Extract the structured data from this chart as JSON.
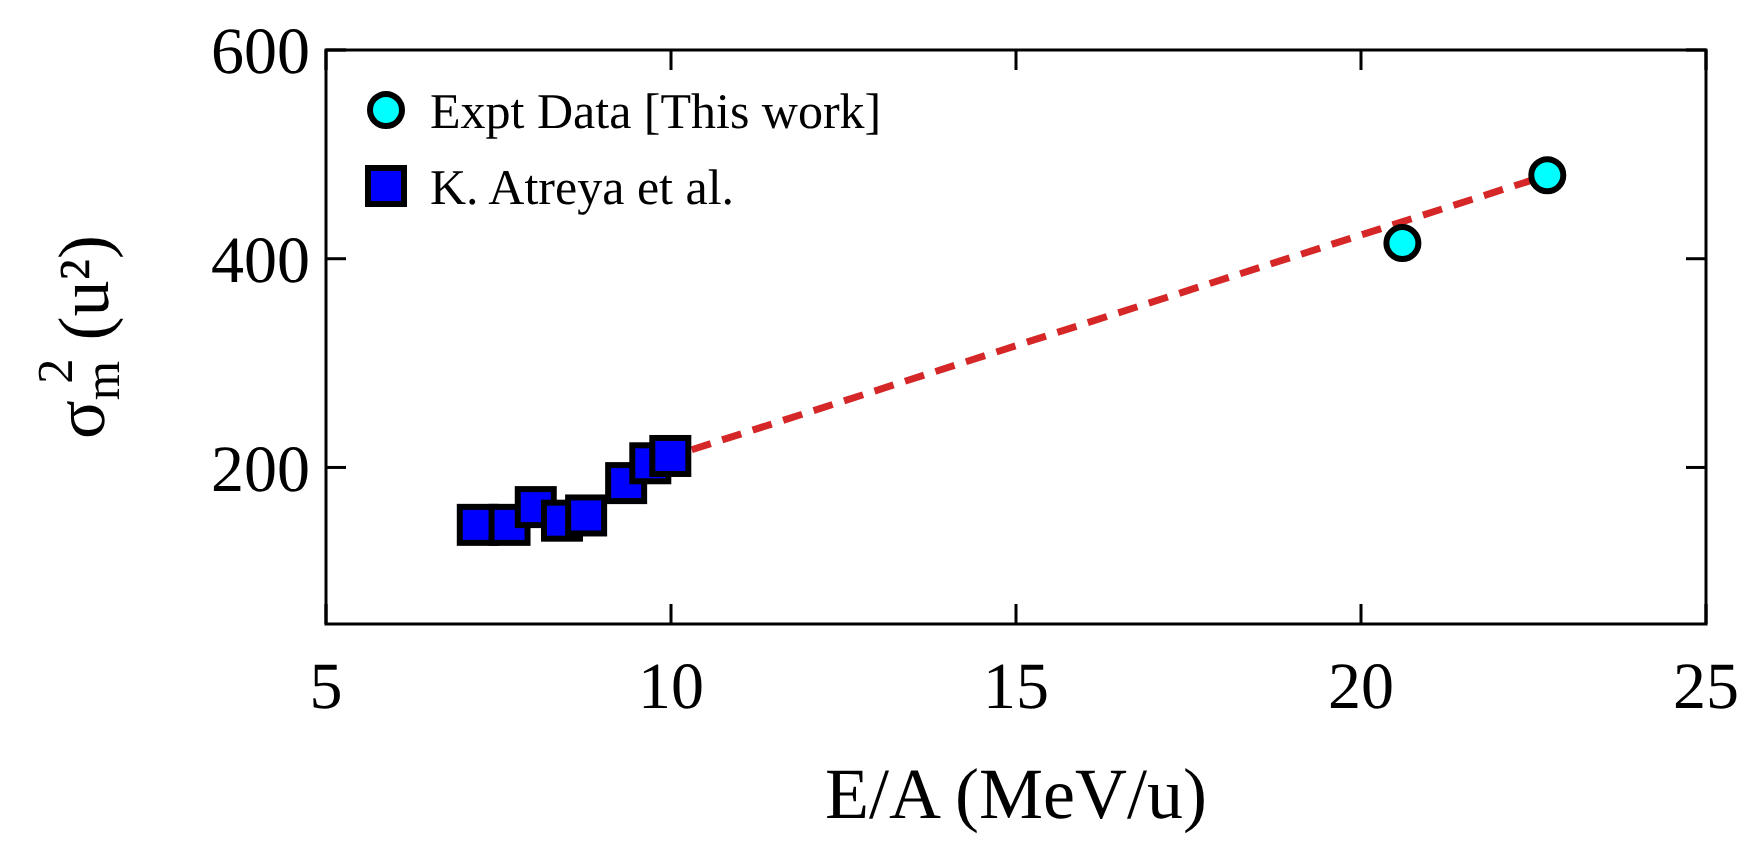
{
  "chart_data": {
    "type": "scatter",
    "xlabel": "E/A (MeV/u)",
    "ylabel": "σ$_{m}$$^{2}$ (u²)",
    "xlim": [
      5,
      25
    ],
    "ylim": [
      50,
      600
    ],
    "xticks": [
      5,
      10,
      15,
      20,
      25
    ],
    "yticks": [
      200,
      400,
      600
    ],
    "legend": "top left",
    "grid": false,
    "series": [
      {
        "name": "Expt Data [This work]",
        "marker": "circle",
        "color": "#00ffff",
        "x": [
          20.6,
          22.7
        ],
        "values": [
          415,
          480
        ]
      },
      {
        "name": "K. Atreya et al.",
        "marker": "square",
        "color": "#0000ff",
        "x": [
          7.2,
          7.66,
          8.04,
          8.42,
          8.77,
          9.35,
          9.7,
          9.99
        ],
        "values": [
          145,
          145,
          162,
          149,
          154,
          185,
          204,
          211
        ]
      },
      {
        "type": "line",
        "marker": "none",
        "line_style": "dashed",
        "color": "#d62728",
        "x": [
          10.3,
          22.7
        ],
        "values": [
          217,
          480
        ]
      }
    ]
  }
}
